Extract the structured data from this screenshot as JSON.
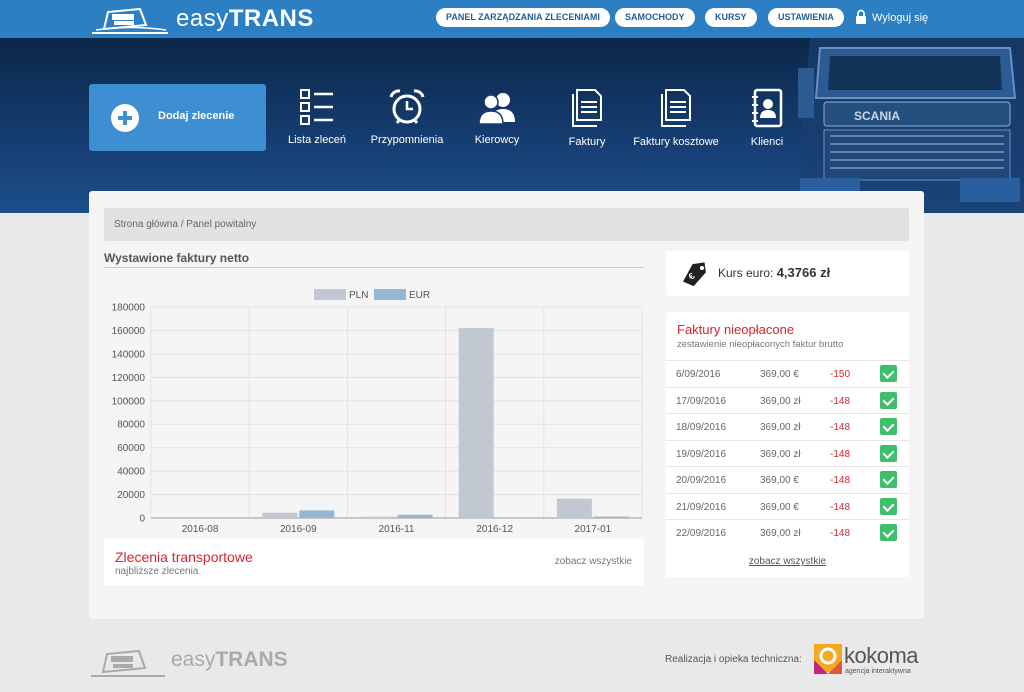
{
  "app": {
    "logo_light": "easy",
    "logo_bold": "TRANS"
  },
  "topnav": {
    "items": [
      "PANEL ZARZĄDZANIA ZLECENIAMI",
      "SAMOCHODY",
      "KURSY",
      "USTAWIENIA"
    ],
    "logout": "Wyloguj się"
  },
  "hero": {
    "add_button": "Dodaj zlecenie",
    "nav": [
      {
        "label": "Lista zleceń",
        "icon": "list-icon"
      },
      {
        "label": "Przypomnienia",
        "icon": "alarm-clock-icon"
      },
      {
        "label": "Kierowcy",
        "icon": "users-icon"
      },
      {
        "label": "Faktury",
        "icon": "documents-icon"
      },
      {
        "label": "Faktury kosztowe",
        "icon": "documents-icon"
      },
      {
        "label": "Klienci",
        "icon": "contact-book-icon"
      }
    ]
  },
  "breadcrumb": "Strona główna / Panel powitalny",
  "invoices_chart": {
    "title": "Wystawione faktury netto"
  },
  "chart_data": {
    "type": "bar",
    "categories": [
      "2016-08",
      "2016-09",
      "2016-11",
      "2016-12",
      "2017-01"
    ],
    "series": [
      {
        "name": "PLN",
        "values": [
          0,
          4500,
          1200,
          162000,
          16500
        ],
        "color": "#c2c8d2"
      },
      {
        "name": "EUR",
        "values": [
          0,
          6500,
          2800,
          0,
          1200
        ],
        "color": "#97b6d1"
      }
    ],
    "yticks": [
      "180000",
      "160000",
      "140000",
      "120000",
      "100000",
      "80000",
      "60000",
      "40000",
      "20000",
      "0"
    ],
    "ylim": [
      0,
      180000
    ],
    "legend_position": "top",
    "grid": true
  },
  "orders": {
    "title": "Zlecenia transportowe",
    "subtitle": "najbliższe zlecenia",
    "link": "zobacz wszystkie"
  },
  "exchange": {
    "label": "Kurs euro:",
    "value": "4,3766 zł"
  },
  "unpaid": {
    "title": "Faktury nieopłacone",
    "subtitle": "zestawienie nieopłaconych faktur brutto",
    "rows": [
      {
        "date": "6/09/2016",
        "amount": "369,00 €",
        "days": "-150"
      },
      {
        "date": "17/09/2016",
        "amount": "369,00 zł",
        "days": "-148"
      },
      {
        "date": "18/09/2016",
        "amount": "369,00 zł",
        "days": "-148"
      },
      {
        "date": "19/09/2016",
        "amount": "369,00 zł",
        "days": "-148"
      },
      {
        "date": "20/09/2016",
        "amount": "369,00 €",
        "days": "-148"
      },
      {
        "date": "21/09/2016",
        "amount": "369,00 €",
        "days": "-148"
      },
      {
        "date": "22/09/2016",
        "amount": "369,00 zł",
        "days": "-148"
      }
    ],
    "link": "zobacz wszystkie"
  },
  "footer": {
    "logo_light": "easy",
    "logo_bold": "TRANS",
    "credit": "Realizacja i opieka techniczna:",
    "partner_name": "kokoma",
    "partner_sub": "agencja interaktywna"
  }
}
